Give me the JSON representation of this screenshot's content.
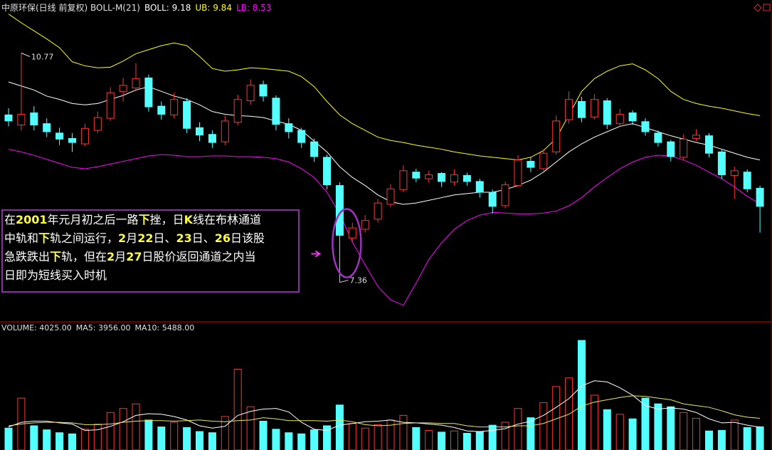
{
  "chart_data": [
    {
      "type": "candlestick",
      "title": "中原环保(日线 前复权) BOLL-M(21)",
      "up_color": "#ff3232",
      "down_color": "#54ffff",
      "ylim": [
        6.9,
        11.4
      ],
      "open": [
        9.85,
        9.7,
        9.88,
        9.72,
        9.58,
        9.5,
        9.42,
        9.62,
        9.8,
        10.2,
        10.25,
        10.4,
        9.98,
        9.85,
        10.05,
        9.66,
        9.56,
        9.45,
        9.74,
        10.06,
        10.3,
        10.1,
        9.72,
        9.62,
        9.45,
        9.22,
        8.8,
        8.02,
        8.15,
        8.3,
        8.52,
        8.74,
        9.0,
        8.9,
        8.98,
        8.85,
        8.95,
        8.86,
        8.7,
        8.5,
        8.8,
        9.16,
        9.05,
        9.3,
        9.78,
        10.05,
        9.82,
        10.06,
        9.72,
        9.88,
        9.75,
        9.58,
        9.45,
        9.22,
        9.5,
        9.54,
        9.3,
        8.95,
        9.0,
        8.76
      ],
      "high": [
        9.95,
        10.77,
        9.98,
        9.8,
        9.66,
        9.58,
        9.72,
        9.9,
        10.26,
        10.4,
        10.62,
        10.45,
        10.05,
        10.18,
        10.1,
        9.74,
        9.62,
        9.84,
        10.15,
        10.38,
        10.36,
        10.14,
        9.8,
        9.66,
        9.5,
        9.26,
        8.85,
        8.25,
        8.36,
        8.6,
        8.82,
        9.1,
        9.05,
        9.02,
        9.0,
        9.04,
        8.99,
        8.9,
        8.74,
        8.86,
        9.25,
        9.22,
        9.34,
        9.84,
        10.2,
        10.12,
        10.16,
        10.1,
        9.94,
        9.92,
        9.8,
        9.62,
        9.48,
        9.56,
        9.64,
        9.58,
        9.34,
        9.08,
        9.04,
        8.8
      ],
      "low": [
        9.68,
        9.62,
        9.62,
        9.52,
        9.4,
        9.3,
        9.38,
        9.58,
        9.76,
        10.05,
        10.2,
        9.9,
        9.78,
        9.8,
        9.58,
        9.46,
        9.36,
        9.4,
        9.7,
        10.0,
        10.05,
        9.62,
        9.5,
        9.36,
        9.15,
        8.74,
        7.36,
        7.95,
        8.1,
        8.25,
        8.48,
        8.7,
        8.85,
        8.84,
        8.78,
        8.8,
        8.8,
        8.62,
        8.38,
        8.46,
        8.78,
        9.0,
        9.02,
        9.26,
        9.72,
        9.74,
        9.78,
        9.64,
        9.68,
        9.7,
        9.54,
        9.38,
        9.16,
        9.18,
        9.46,
        9.22,
        8.9,
        8.6,
        8.7,
        8.1
      ],
      "close": [
        9.76,
        9.86,
        9.7,
        9.6,
        9.49,
        9.44,
        9.65,
        9.81,
        10.18,
        10.29,
        10.39,
        9.97,
        9.86,
        10.08,
        9.65,
        9.55,
        9.44,
        9.76,
        10.08,
        10.29,
        10.13,
        9.71,
        9.6,
        9.44,
        9.23,
        8.81,
        8.06,
        8.17,
        8.28,
        8.54,
        8.75,
        9.02,
        8.91,
        8.96,
        8.86,
        8.96,
        8.86,
        8.7,
        8.49,
        8.81,
        9.18,
        9.07,
        9.28,
        9.76,
        10.08,
        9.81,
        10.08,
        9.71,
        9.86,
        9.76,
        9.6,
        9.44,
        9.23,
        9.49,
        9.55,
        9.28,
        8.96,
        9.02,
        8.75,
        8.49
      ],
      "high_label": "10.77",
      "low_label": "7.36",
      "series": [
        {
          "name": "BOLL: 9.18",
          "color": "#ffffff",
          "values": [
            10.34,
            10.28,
            10.22,
            10.13,
            10.08,
            10.02,
            10.0,
            10.02,
            10.08,
            10.14,
            10.22,
            10.27,
            10.2,
            10.13,
            10.08,
            10.0,
            9.9,
            9.86,
            9.84,
            9.83,
            9.81,
            9.76,
            9.71,
            9.62,
            9.46,
            9.3,
            9.08,
            8.92,
            8.8,
            8.66,
            8.56,
            8.52,
            8.54,
            8.58,
            8.62,
            8.66,
            8.68,
            8.7,
            8.7,
            8.74,
            8.8,
            8.88,
            9.0,
            9.15,
            9.3,
            9.42,
            9.52,
            9.6,
            9.68,
            9.72,
            9.66,
            9.6,
            9.54,
            9.49,
            9.44,
            9.4,
            9.34,
            9.28,
            9.22,
            9.18
          ]
        },
        {
          "name": "UB: 9.84",
          "color": "#ffff00",
          "values": [
            11.35,
            11.22,
            11.1,
            10.98,
            10.85,
            10.64,
            10.58,
            10.55,
            10.56,
            10.65,
            10.76,
            10.82,
            10.88,
            10.92,
            10.88,
            10.72,
            10.54,
            10.5,
            10.52,
            10.55,
            10.54,
            10.52,
            10.5,
            10.42,
            10.27,
            10.05,
            9.85,
            9.72,
            9.62,
            9.52,
            9.47,
            9.44,
            9.4,
            9.37,
            9.34,
            9.3,
            9.27,
            9.24,
            9.22,
            9.2,
            9.18,
            9.22,
            9.32,
            9.5,
            9.85,
            10.2,
            10.39,
            10.5,
            10.58,
            10.61,
            10.52,
            10.39,
            10.2,
            10.08,
            10.02,
            9.98,
            9.95,
            9.91,
            9.87,
            9.84
          ]
        },
        {
          "name": "LB: 8.53",
          "color": "#ff00ff",
          "values": [
            9.34,
            9.3,
            9.25,
            9.19,
            9.13,
            9.07,
            9.05,
            9.08,
            9.12,
            9.16,
            9.2,
            9.24,
            9.26,
            9.25,
            9.23,
            9.23,
            9.24,
            9.24,
            9.23,
            9.23,
            9.22,
            9.2,
            9.15,
            9.05,
            8.92,
            8.7,
            8.38,
            7.96,
            7.62,
            7.3,
            7.1,
            7.02,
            7.35,
            7.7,
            7.95,
            8.15,
            8.28,
            8.36,
            8.4,
            8.39,
            8.38,
            8.38,
            8.39,
            8.42,
            8.5,
            8.62,
            8.78,
            8.92,
            9.05,
            9.15,
            9.22,
            9.25,
            9.24,
            9.18,
            9.1,
            9.0,
            8.9,
            8.78,
            8.64,
            8.53
          ]
        }
      ],
      "annotation_lines": [
        [
          {
            "text": "在"
          },
          {
            "text": "2001",
            "em": true
          },
          {
            "text": "年元月初之后一路"
          },
          {
            "text": "下",
            "em": true
          },
          {
            "text": "挫，日"
          },
          {
            "text": "K",
            "em": true
          },
          {
            "text": "线在布林通道"
          }
        ],
        [
          {
            "text": "中轨和"
          },
          {
            "text": "下",
            "em": true
          },
          {
            "text": "轨之间运行，"
          },
          {
            "text": "2",
            "em": true
          },
          {
            "text": "月"
          },
          {
            "text": "22",
            "em": true
          },
          {
            "text": "日、"
          },
          {
            "text": "23",
            "em": true
          },
          {
            "text": "日、"
          },
          {
            "text": "26",
            "em": true
          },
          {
            "text": "日该股"
          }
        ],
        [
          {
            "text": "急跌跌出"
          },
          {
            "text": "下",
            "em": true
          },
          {
            "text": "轨，但在"
          },
          {
            "text": "2",
            "em": true
          },
          {
            "text": "月"
          },
          {
            "text": "27",
            "em": true
          },
          {
            "text": "日股价返回通道之内当"
          }
        ],
        [
          {
            "text": "日即为短线买入时机"
          }
        ]
      ]
    },
    {
      "type": "bar",
      "ylim": [
        0,
        20000
      ],
      "series": [
        {
          "name": "VOLUME: 4025.00",
          "color": "#54ffff",
          "values": [
            3800,
            9000,
            4200,
            3500,
            3000,
            2800,
            3600,
            4500,
            6500,
            7200,
            8000,
            5200,
            4000,
            4800,
            3900,
            3200,
            3000,
            5800,
            14000,
            7500,
            5000,
            3600,
            3000,
            2800,
            3500,
            4200,
            7800,
            4600,
            3800,
            4400,
            5200,
            6000,
            3900,
            3400,
            3100,
            3300,
            2900,
            3200,
            4300,
            4800,
            7200,
            5600,
            8200,
            11000,
            12500,
            19000,
            9500,
            7000,
            6200,
            5400,
            9000,
            8000,
            7500,
            6500,
            5500,
            3300,
            3400,
            5200,
            3900,
            4025
          ]
        },
        {
          "name": "MA5: 3956.00",
          "color": "#ffffff",
          "values": [
            4000,
            4800,
            5000,
            5000,
            4700,
            4500,
            3400,
            3500,
            4100,
            4900,
            6000,
            6300,
            6200,
            5800,
            5200,
            4200,
            3800,
            4100,
            6000,
            6700,
            7100,
            7200,
            6600,
            4800,
            3600,
            3400,
            4300,
            4600,
            4900,
            5000,
            5200,
            4800,
            4700,
            4500,
            4300,
            3900,
            3300,
            3200,
            3400,
            3700,
            4500,
            5000,
            6000,
            7400,
            8900,
            11100,
            12000,
            11800,
            10800,
            9500,
            7700,
            7100,
            7300,
            7100,
            6500,
            5400,
            4700,
            4800,
            4300,
            3956
          ]
        },
        {
          "name": "MA10: 5488.00",
          "color": "#e8e860",
          "values": [
            4200,
            4500,
            4700,
            4800,
            4800,
            4700,
            4400,
            4400,
            4500,
            4800,
            5000,
            5100,
            5100,
            5000,
            5100,
            5200,
            5000,
            4900,
            5100,
            5200,
            5600,
            5400,
            5100,
            5100,
            5100,
            5000,
            5200,
            4900,
            4400,
            4200,
            4300,
            4600,
            4700,
            4700,
            4600,
            4600,
            4200,
            4000,
            4000,
            4000,
            4200,
            4200,
            4600,
            5400,
            6200,
            7600,
            8300,
            8700,
            9100,
            9400,
            9300,
            9000,
            8700,
            8000,
            7700,
            7400,
            6800,
            6100,
            5700,
            5488
          ]
        }
      ]
    }
  ]
}
